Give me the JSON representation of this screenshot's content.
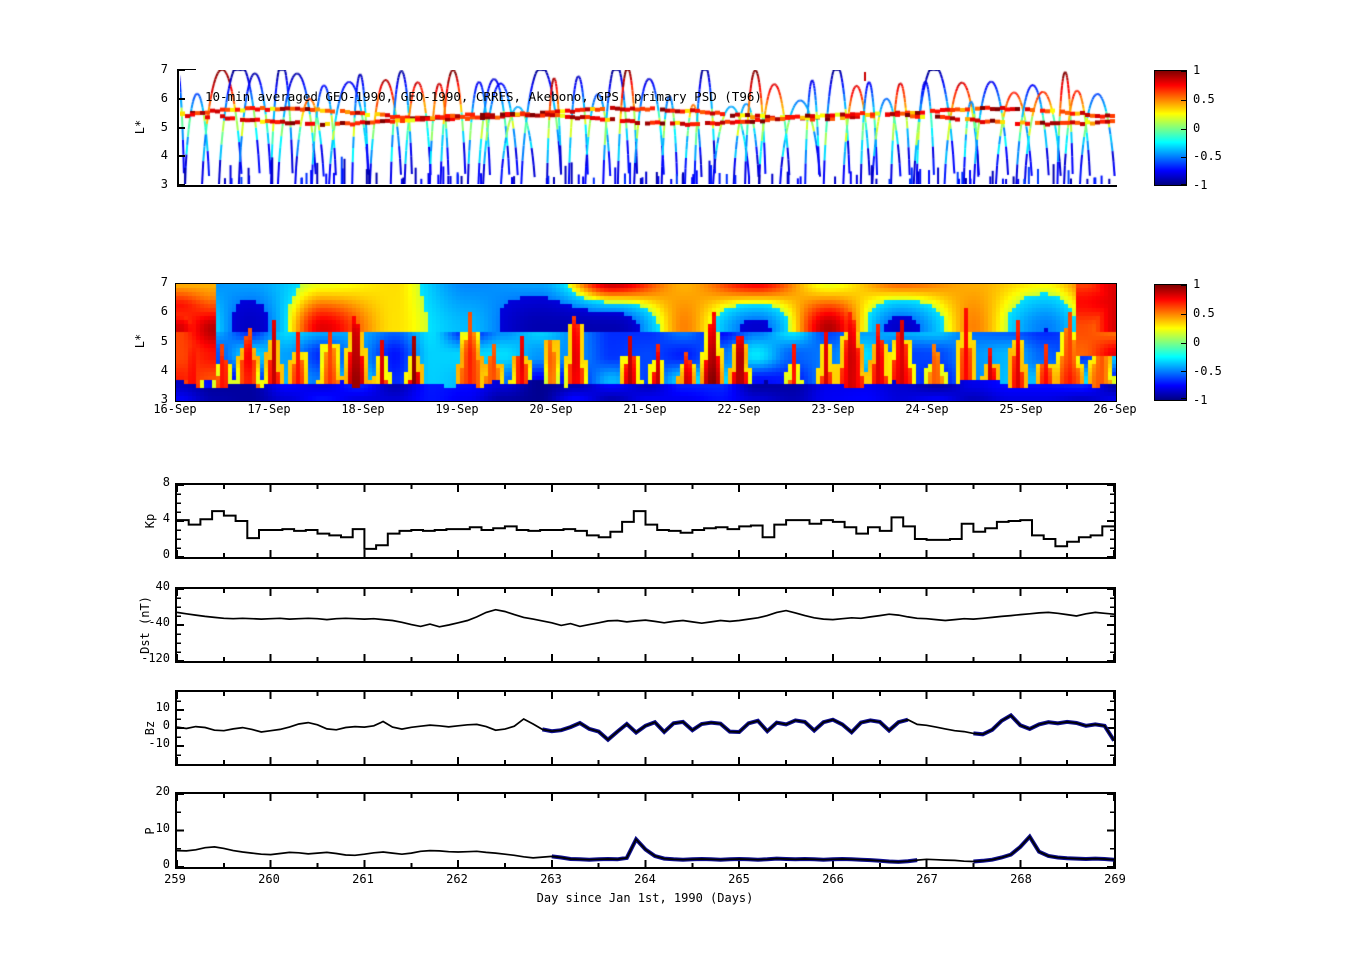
{
  "figure": {
    "background": "#ffffff",
    "axis_color": "#000000",
    "overlay_color": "#0f0f8f",
    "jet_stops": [
      "#800000",
      "#ff0000",
      "#ff8000",
      "#ffff00",
      "#80ff80",
      "#00ffff",
      "#0080ff",
      "#0000ff",
      "#000080"
    ]
  },
  "colorbar": {
    "tick_labels": [
      "1",
      "0.5",
      "0",
      "-0.5",
      "-1"
    ],
    "tick_values": [
      1,
      0.5,
      0,
      -0.5,
      -1
    ],
    "range": [
      -1,
      1
    ]
  },
  "chart_data": [
    {
      "type": "line",
      "title": "10-min averaged GEO-1990, GEO-1990, CRRES, Akebono, GPS  primary PSD (T96)",
      "ylabel": "L*",
      "ylim": [
        3,
        7
      ],
      "yticks": [
        3,
        4,
        5,
        6,
        7
      ],
      "colorbar_range": [
        -1,
        1
      ],
      "description": "Satellite orbit traces in L* vs time colored by normalized PSD (jet colormap): red/orange band near L*=5.3 (GEO), V-shaped CRRES/Akebono orbit arcs blue at low L*, warm or cold colored apexes, dark-blue dashes near L*=3"
    },
    {
      "type": "heatmap",
      "ylabel": "L*",
      "ylim": [
        3,
        7
      ],
      "yticks": [
        3,
        4,
        5,
        6,
        7
      ],
      "x_tick_labels": [
        "16-Sep",
        "17-Sep",
        "18-Sep",
        "19-Sep",
        "20-Sep",
        "21-Sep",
        "22-Sep",
        "23-Sep",
        "24-Sep",
        "25-Sep",
        "26-Sep"
      ],
      "colorbar_range": [
        -1,
        1
      ],
      "description": "Interpolated normalized PSD spectrogram, jet colormap: dark navy band L*<3.6, red vertical injection wedges between blue regions at mid L*, yellow/orange and dark-blue patches at high L*, warm region at far left (16-Sep)"
    },
    {
      "type": "line",
      "ylabel": "Kp",
      "ylim": [
        0,
        8
      ],
      "yticks": [
        0,
        4,
        8
      ],
      "yticks_minor": [
        1,
        2,
        3,
        5,
        6,
        7
      ],
      "step": true,
      "t0": 259,
      "dt": 0.125,
      "values": [
        4.1,
        3.6,
        4.2,
        5.1,
        4.6,
        4.0,
        2.1,
        3.0,
        3.0,
        3.1,
        2.9,
        3.0,
        2.6,
        2.4,
        2.2,
        3.1,
        0.9,
        1.3,
        2.6,
        2.9,
        3.0,
        2.9,
        3.0,
        3.1,
        3.1,
        3.3,
        3.0,
        3.2,
        3.4,
        3.0,
        2.9,
        3.0,
        3.0,
        3.1,
        2.9,
        2.4,
        2.2,
        2.8,
        3.9,
        5.1,
        3.6,
        3.0,
        2.9,
        2.7,
        3.0,
        3.2,
        3.3,
        3.1,
        3.4,
        3.5,
        2.2,
        3.6,
        4.1,
        4.1,
        3.7,
        4.1,
        3.9,
        3.3,
        2.6,
        3.3,
        2.9,
        4.4,
        3.4,
        2.0,
        1.9,
        1.9,
        2.0,
        3.7,
        2.8,
        3.2,
        3.9,
        4.0,
        4.1,
        2.4,
        2.0,
        1.2,
        1.7,
        2.2,
        2.4,
        3.4
      ]
    },
    {
      "type": "line",
      "ylabel": "Dst (nT)",
      "ylim": [
        -120,
        40
      ],
      "yticks": [
        40,
        -40,
        -120
      ],
      "yticks_minor": [
        20,
        0,
        -20,
        -60,
        -80,
        -100
      ],
      "t0": 259,
      "dt": 0.1,
      "values": [
        -12,
        -15,
        -18,
        -21,
        -23,
        -25,
        -26,
        -25,
        -26,
        -27,
        -26,
        -25,
        -27,
        -26,
        -25,
        -26,
        -28,
        -26,
        -25,
        -26,
        -27,
        -26,
        -28,
        -30,
        -34,
        -39,
        -43,
        -38,
        -44,
        -40,
        -35,
        -30,
        -22,
        -12,
        -6,
        -10,
        -17,
        -23,
        -27,
        -31,
        -35,
        -41,
        -37,
        -43,
        -39,
        -35,
        -31,
        -30,
        -33,
        -31,
        -29,
        -32,
        -35,
        -32,
        -30,
        -33,
        -36,
        -33,
        -30,
        -32,
        -30,
        -27,
        -24,
        -19,
        -12,
        -8,
        -13,
        -19,
        -24,
        -27,
        -28,
        -26,
        -24,
        -25,
        -22,
        -19,
        -16,
        -18,
        -22,
        -25,
        -26,
        -28,
        -30,
        -28,
        -26,
        -27,
        -25,
        -23,
        -21,
        -19,
        -17,
        -15,
        -13,
        -12,
        -14,
        -17,
        -20,
        -15,
        -12,
        -14,
        -16
      ]
    },
    {
      "type": "line",
      "ylabel": "Bz",
      "ylim": [
        -20,
        20
      ],
      "yticks": [
        10,
        0,
        -10
      ],
      "yticks_minor": [
        15,
        5,
        -5,
        -15
      ],
      "t0": 259,
      "dt": 0.1,
      "overlay_segments": [
        [
          262.9,
          266.85
        ],
        [
          267.45,
          269.0
        ]
      ],
      "values": [
        0.5,
        -0.3,
        0.8,
        0.3,
        -1.2,
        -1.5,
        -0.5,
        0.2,
        -0.8,
        -2.2,
        -1.5,
        -0.8,
        0.5,
        2.2,
        3.0,
        1.8,
        -0.5,
        -1.0,
        0.3,
        0.8,
        0.5,
        1.2,
        3.6,
        0.5,
        -0.6,
        0.4,
        1.0,
        1.6,
        1.2,
        0.6,
        1.2,
        1.8,
        2.0,
        0.8,
        -1.2,
        -0.6,
        1.0,
        5.0,
        2.2,
        -0.8,
        -1.8,
        -1.2,
        0.5,
        2.8,
        -0.5,
        -2.0,
        -6.5,
        -2.0,
        2.2,
        -2.5,
        1.2,
        3.2,
        -2.2,
        2.6,
        3.4,
        -1.2,
        2.2,
        3.0,
        2.4,
        -2.0,
        -2.2,
        2.6,
        4.0,
        -1.8,
        3.0,
        2.0,
        4.2,
        3.4,
        -1.4,
        3.2,
        4.6,
        2.0,
        -2.4,
        3.0,
        4.2,
        3.4,
        -1.4,
        3.2,
        4.6,
        2.0,
        1.5,
        0.5,
        -0.5,
        -1.5,
        -2.0,
        -3.0,
        -3.5,
        -1.0,
        4.0,
        7.0,
        1.5,
        -0.5,
        2.0,
        3.2,
        2.6,
        3.4,
        2.8,
        1.2,
        2.0,
        1.2,
        -7.0
      ]
    },
    {
      "type": "line",
      "ylabel": "P",
      "ylim": [
        0,
        20
      ],
      "yticks": [
        0,
        10,
        20
      ],
      "yticks_minor": [
        5,
        15
      ],
      "t0": 259,
      "dt": 0.1,
      "xlabel": "Day since Jan 1st, 1990 (Days)",
      "xticks": [
        259,
        260,
        261,
        262,
        263,
        264,
        265,
        266,
        267,
        268,
        269
      ],
      "overlay_segments": [
        [
          262.95,
          266.9
        ],
        [
          267.5,
          269.0
        ]
      ],
      "values": [
        4.5,
        4.4,
        4.7,
        5.3,
        5.5,
        5.1,
        4.5,
        4.1,
        3.8,
        3.5,
        3.4,
        3.7,
        4.0,
        3.9,
        3.6,
        3.8,
        4.0,
        3.7,
        3.3,
        3.2,
        3.5,
        3.9,
        4.1,
        3.8,
        3.5,
        3.8,
        4.3,
        4.5,
        4.4,
        4.2,
        4.1,
        4.2,
        4.3,
        4.0,
        3.8,
        3.5,
        3.2,
        2.8,
        2.5,
        2.7,
        2.9,
        2.6,
        2.2,
        2.1,
        2.0,
        2.1,
        2.2,
        2.1,
        2.5,
        7.6,
        4.8,
        3.0,
        2.3,
        2.1,
        2.0,
        2.1,
        2.2,
        2.1,
        2.0,
        2.1,
        2.2,
        2.1,
        2.0,
        2.1,
        2.3,
        2.2,
        2.1,
        2.2,
        2.1,
        2.0,
        2.1,
        2.2,
        2.1,
        2.0,
        1.9,
        1.7,
        1.5,
        1.4,
        1.6,
        1.9,
        2.1,
        2.0,
        1.9,
        1.8,
        1.6,
        1.5,
        1.7,
        2.0,
        2.6,
        3.4,
        5.5,
        8.3,
        4.2,
        3.0,
        2.6,
        2.4,
        2.3,
        2.2,
        2.3,
        2.2,
        2.0
      ]
    }
  ],
  "xaxis_shared": {
    "xlim": [
      259,
      269
    ],
    "minor_step": 0.5
  }
}
